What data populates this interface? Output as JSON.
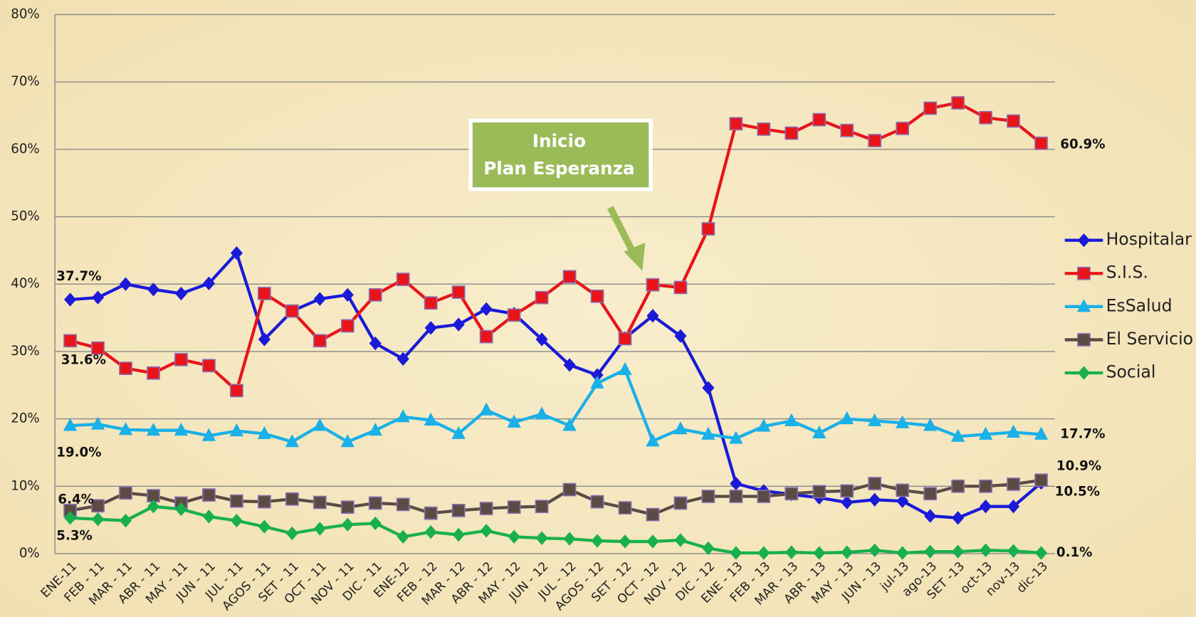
{
  "chart_data": {
    "type": "line",
    "categories": [
      "ENE-11",
      "FEB - 11",
      "MAR - 11",
      "ABR - 11",
      "MAY - 11",
      "JUN - 11",
      "JUL - 11",
      "AGOS - 11",
      "SET - 11",
      "OCT - 11",
      "NOV - 11",
      "DIC - 11",
      "ENE-12",
      "FEB - 12",
      "MAR - 12",
      "ABR - 12",
      "MAY - 12",
      "JUN - 12",
      "JUL - 12",
      "AGOS - 12",
      "SET - 12",
      "OCT - 12",
      "NOV - 12",
      "DIC - 12",
      "ENE - 13",
      "FEB - 13",
      "MAR - 13",
      "ABR - 13",
      "MAY - 13",
      "JUN - 13",
      "jul-13",
      "ago-13",
      "SET -13",
      "oct-13",
      "nov-13",
      "dic-13"
    ],
    "ylim": [
      0,
      80
    ],
    "yticks": [
      {
        "value": 0,
        "label": "0%"
      },
      {
        "value": 10,
        "label": "10%"
      },
      {
        "value": 20,
        "label": "20%"
      },
      {
        "value": 30,
        "label": "30%"
      },
      {
        "value": 40,
        "label": "40%"
      },
      {
        "value": 50,
        "label": "50%"
      },
      {
        "value": 60,
        "label": "60%"
      },
      {
        "value": 70,
        "label": "70%"
      },
      {
        "value": 80,
        "label": "80%"
      }
    ],
    "grid": true,
    "legend": "right",
    "annotation": {
      "lines": [
        "Inicio",
        "Plan Esperanza"
      ]
    },
    "series": [
      {
        "name": "Hospitalar",
        "color": "#1a1ad8",
        "marker": "diamond",
        "values": [
          37.7,
          38.0,
          40.0,
          39.2,
          38.6,
          40.1,
          44.6,
          31.8,
          36.0,
          37.8,
          38.4,
          31.2,
          28.9,
          33.5,
          34.0,
          36.3,
          35.6,
          31.8,
          28.0,
          26.5,
          32.0,
          35.3,
          32.3,
          24.6,
          10.4,
          9.3,
          8.8,
          8.3,
          7.6,
          8.0,
          7.8,
          5.6,
          5.3,
          7.0,
          7.0,
          10.5
        ],
        "value_labels": [
          "37.7%",
          null,
          null,
          null,
          null,
          null,
          null,
          null,
          null,
          null,
          null,
          null,
          null,
          null,
          null,
          null,
          null,
          null,
          null,
          null,
          null,
          null,
          null,
          null,
          null,
          null,
          null,
          null,
          null,
          null,
          null,
          null,
          null,
          null,
          null,
          "10.5%"
        ]
      },
      {
        "name": "S.I.S.",
        "color": "#e8141a",
        "marker": "square",
        "values": [
          31.6,
          30.5,
          27.5,
          26.8,
          28.8,
          27.9,
          24.2,
          38.6,
          36.0,
          31.6,
          33.8,
          38.4,
          40.7,
          37.2,
          38.8,
          32.2,
          35.4,
          38.0,
          41.1,
          38.2,
          31.9,
          39.9,
          39.5,
          48.2,
          63.8,
          63.0,
          62.4,
          64.4,
          62.8,
          61.3,
          63.1,
          66.1,
          66.9,
          64.7,
          64.2,
          60.9
        ],
        "value_labels": [
          "31.6%",
          null,
          null,
          null,
          null,
          null,
          null,
          null,
          null,
          null,
          null,
          null,
          null,
          null,
          null,
          null,
          null,
          null,
          null,
          null,
          null,
          null,
          null,
          null,
          null,
          null,
          null,
          null,
          null,
          null,
          null,
          null,
          null,
          null,
          null,
          "60.9%"
        ]
      },
      {
        "name": "EsSalud",
        "color": "#1ab0e8",
        "marker": "triangle",
        "values": [
          19.0,
          19.2,
          18.4,
          18.3,
          18.3,
          17.5,
          18.2,
          17.8,
          16.6,
          19.0,
          16.6,
          18.3,
          20.3,
          19.8,
          17.8,
          21.3,
          19.5,
          20.7,
          19.0,
          25.3,
          27.3,
          16.7,
          18.5,
          17.7,
          17.1,
          18.9,
          19.7,
          17.9,
          20.0,
          19.7,
          19.4,
          19.0,
          17.4,
          17.7,
          18.0,
          17.7
        ],
        "value_labels": [
          "19.0%",
          null,
          null,
          null,
          null,
          null,
          null,
          null,
          null,
          null,
          null,
          null,
          null,
          null,
          null,
          null,
          null,
          null,
          null,
          null,
          null,
          null,
          null,
          null,
          null,
          null,
          null,
          null,
          null,
          null,
          null,
          null,
          null,
          null,
          null,
          "17.7%"
        ]
      },
      {
        "name": "El Servicio",
        "color": "#5a4c44",
        "marker": "square",
        "values": [
          6.4,
          7.1,
          9.0,
          8.6,
          7.5,
          8.7,
          7.8,
          7.7,
          8.1,
          7.6,
          6.9,
          7.5,
          7.3,
          6.0,
          6.4,
          6.7,
          6.9,
          7.0,
          9.5,
          7.7,
          6.8,
          5.8,
          7.5,
          8.5,
          8.5,
          8.5,
          8.9,
          9.2,
          9.3,
          10.4,
          9.4,
          8.9,
          10.0,
          10.0,
          10.3,
          10.9
        ],
        "value_labels": [
          "6.4%",
          null,
          null,
          null,
          null,
          null,
          null,
          null,
          null,
          null,
          null,
          null,
          null,
          null,
          null,
          null,
          null,
          null,
          null,
          null,
          null,
          null,
          null,
          null,
          null,
          null,
          null,
          null,
          null,
          null,
          null,
          null,
          null,
          null,
          null,
          "10.9%"
        ]
      },
      {
        "name": "Social",
        "color": "#18b04e",
        "marker": "diamond",
        "values": [
          5.3,
          5.1,
          4.9,
          7.0,
          6.6,
          5.5,
          4.9,
          4.0,
          3.0,
          3.7,
          4.3,
          4.5,
          2.5,
          3.2,
          2.8,
          3.4,
          2.5,
          2.3,
          2.2,
          1.9,
          1.8,
          1.8,
          2.0,
          0.8,
          0.1,
          0.1,
          0.2,
          0.1,
          0.2,
          0.5,
          0.1,
          0.3,
          0.3,
          0.5,
          0.4,
          0.1
        ],
        "value_labels": [
          "5.3%",
          null,
          null,
          null,
          null,
          null,
          null,
          null,
          null,
          null,
          null,
          null,
          null,
          null,
          null,
          null,
          null,
          null,
          null,
          null,
          null,
          null,
          null,
          null,
          null,
          null,
          null,
          null,
          null,
          null,
          null,
          null,
          null,
          null,
          null,
          "0.1%"
        ]
      }
    ]
  }
}
